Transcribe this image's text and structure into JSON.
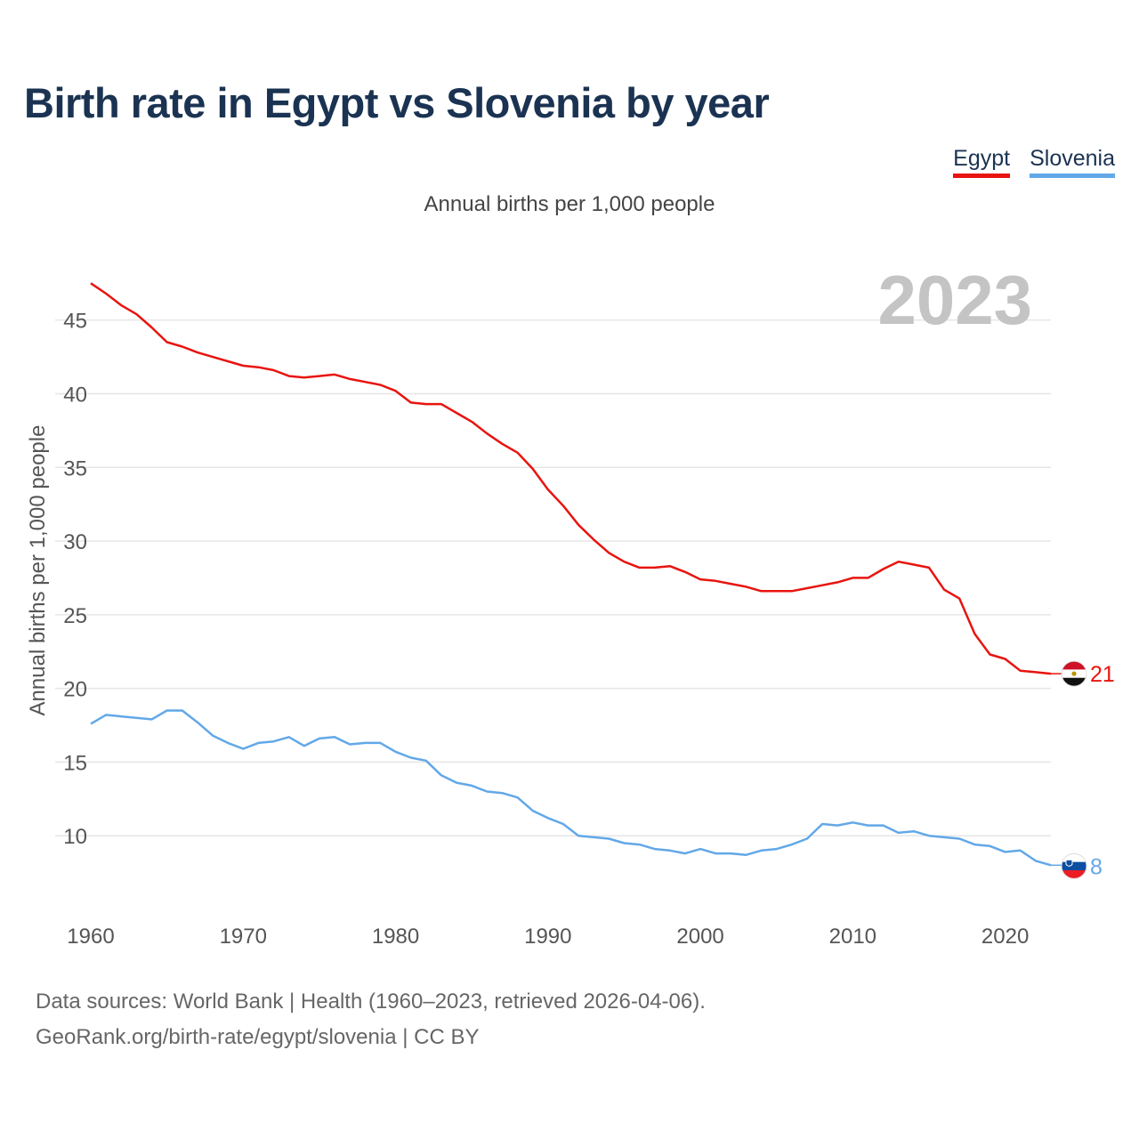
{
  "title": "Birth rate in Egypt vs Slovenia by year",
  "subtitle": "Annual births per 1,000 people",
  "year_display": "2023",
  "legend": [
    "Egypt",
    "Slovenia"
  ],
  "source": {
    "line1": "Data sources: World Bank | Health (1960–2023, retrieved 2026-04-06).",
    "line2": "GeoRank.org/birth-rate/egypt/slovenia | CC BY"
  },
  "colors": {
    "egypt": "#e8140f",
    "slovenia": "#62a8e8",
    "grid": "#e6e6e6",
    "axis_text": "#555555"
  },
  "chart_data": {
    "type": "line",
    "title": "Birth rate in Egypt vs Slovenia by year",
    "ylabel": "Annual births per 1,000 people",
    "xlabel": "",
    "xlim": [
      1960,
      2023
    ],
    "ylim": [
      5,
      48
    ],
    "x_ticks": [
      1960,
      1970,
      1980,
      1990,
      2000,
      2010,
      2020
    ],
    "y_ticks": [
      10,
      15,
      20,
      25,
      30,
      35,
      40,
      45
    ],
    "x": [
      1960,
      1961,
      1962,
      1963,
      1964,
      1965,
      1966,
      1967,
      1968,
      1969,
      1970,
      1971,
      1972,
      1973,
      1974,
      1975,
      1976,
      1977,
      1978,
      1979,
      1980,
      1981,
      1982,
      1983,
      1984,
      1985,
      1986,
      1987,
      1988,
      1989,
      1990,
      1991,
      1992,
      1993,
      1994,
      1995,
      1996,
      1997,
      1998,
      1999,
      2000,
      2001,
      2002,
      2003,
      2004,
      2005,
      2006,
      2007,
      2008,
      2009,
      2010,
      2011,
      2012,
      2013,
      2014,
      2015,
      2016,
      2017,
      2018,
      2019,
      2020,
      2021,
      2022,
      2023
    ],
    "series": [
      {
        "name": "Egypt",
        "color": "#e8140f",
        "end_label": "21",
        "values": [
          47.5,
          46.8,
          46.0,
          45.4,
          44.5,
          43.5,
          43.2,
          42.8,
          42.5,
          42.2,
          41.9,
          41.8,
          41.6,
          41.2,
          41.1,
          41.2,
          41.3,
          41.0,
          40.8,
          40.6,
          40.2,
          39.4,
          39.3,
          39.3,
          38.7,
          38.1,
          37.3,
          36.6,
          36.0,
          34.9,
          33.5,
          32.4,
          31.1,
          30.1,
          29.2,
          28.6,
          28.2,
          28.2,
          28.3,
          27.9,
          27.4,
          27.3,
          27.1,
          26.9,
          26.6,
          26.6,
          26.6,
          26.8,
          27.0,
          27.2,
          27.5,
          27.5,
          28.1,
          28.6,
          28.4,
          28.2,
          26.7,
          26.1,
          23.7,
          22.3,
          22.0,
          21.2,
          21.1,
          21.0
        ]
      },
      {
        "name": "Slovenia",
        "color": "#62a8e8",
        "end_label": "8",
        "values": [
          17.6,
          18.2,
          18.1,
          18.0,
          17.9,
          18.5,
          18.5,
          17.7,
          16.8,
          16.3,
          15.9,
          16.3,
          16.4,
          16.7,
          16.1,
          16.6,
          16.7,
          16.2,
          16.3,
          16.3,
          15.7,
          15.3,
          15.1,
          14.1,
          13.6,
          13.4,
          13.0,
          12.9,
          12.6,
          11.7,
          11.2,
          10.8,
          10.0,
          9.9,
          9.8,
          9.5,
          9.4,
          9.1,
          9.0,
          8.8,
          9.1,
          8.8,
          8.8,
          8.7,
          9.0,
          9.1,
          9.4,
          9.8,
          10.8,
          10.7,
          10.9,
          10.7,
          10.7,
          10.2,
          10.3,
          10.0,
          9.9,
          9.8,
          9.4,
          9.3,
          8.9,
          9.0,
          8.3,
          8.0
        ]
      }
    ]
  }
}
